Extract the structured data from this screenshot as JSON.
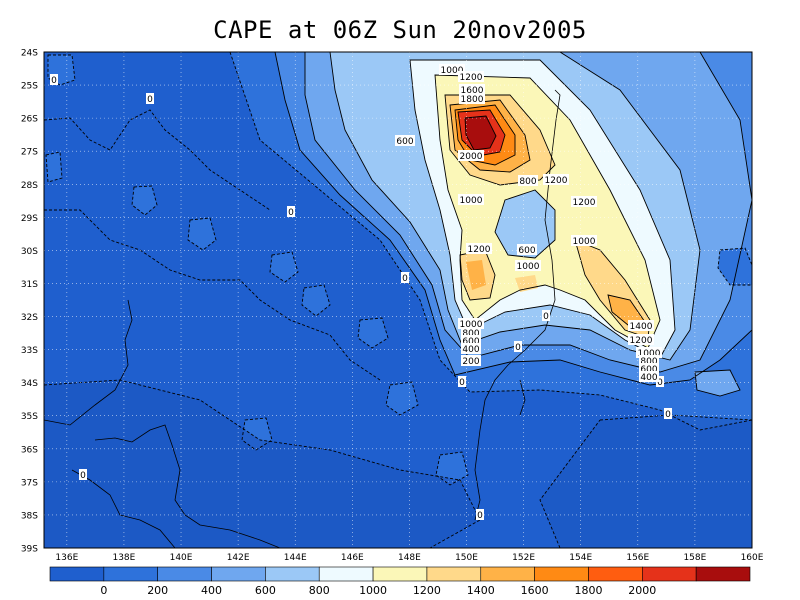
{
  "title": "CAPE at 06Z Sun 20nov2005",
  "axes": {
    "lat_labels": [
      "24S",
      "25S",
      "26S",
      "27S",
      "28S",
      "29S",
      "30S",
      "31S",
      "32S",
      "33S",
      "34S",
      "35S",
      "36S",
      "37S",
      "38S",
      "39S"
    ],
    "lon_labels": [
      "136E",
      "138E",
      "140E",
      "142E",
      "144E",
      "146E",
      "148E",
      "150E",
      "152E",
      "154E",
      "156E",
      "158E",
      "160E"
    ]
  },
  "colorbar": {
    "colors": [
      "#1f5fce",
      "#2e72db",
      "#4a8ae6",
      "#6fa7ef",
      "#9bc8f6",
      "#eefaff",
      "#fbf7b8",
      "#ffd98a",
      "#ffb247",
      "#ff8a14",
      "#ff5d10",
      "#e5321a",
      "#a80d0d"
    ],
    "labels": [
      "0",
      "200",
      "400",
      "600",
      "800",
      "1000",
      "1200",
      "1400",
      "1600",
      "1800",
      "2000"
    ]
  },
  "contour_labels": [
    {
      "text": "0"
    },
    {
      "text": "0"
    },
    {
      "text": "0"
    },
    {
      "text": "0"
    },
    {
      "text": "0"
    },
    {
      "text": "0"
    },
    {
      "text": "0"
    },
    {
      "text": "0"
    },
    {
      "text": "0"
    },
    {
      "text": "0"
    },
    {
      "text": "0"
    },
    {
      "text": "600"
    },
    {
      "text": "1000"
    },
    {
      "text": "1200"
    },
    {
      "text": "1600"
    },
    {
      "text": "1800"
    },
    {
      "text": "2000"
    },
    {
      "text": "800"
    },
    {
      "text": "1200"
    },
    {
      "text": "1000"
    },
    {
      "text": "1200"
    },
    {
      "text": "1000"
    },
    {
      "text": "1200"
    },
    {
      "text": "600"
    },
    {
      "text": "1000"
    },
    {
      "text": "1000"
    },
    {
      "text": "800"
    },
    {
      "text": "600"
    },
    {
      "text": "400"
    },
    {
      "text": "200"
    },
    {
      "text": "1400"
    },
    {
      "text": "1200"
    },
    {
      "text": "1000"
    },
    {
      "text": "800"
    },
    {
      "text": "600"
    },
    {
      "text": "400"
    }
  ]
}
